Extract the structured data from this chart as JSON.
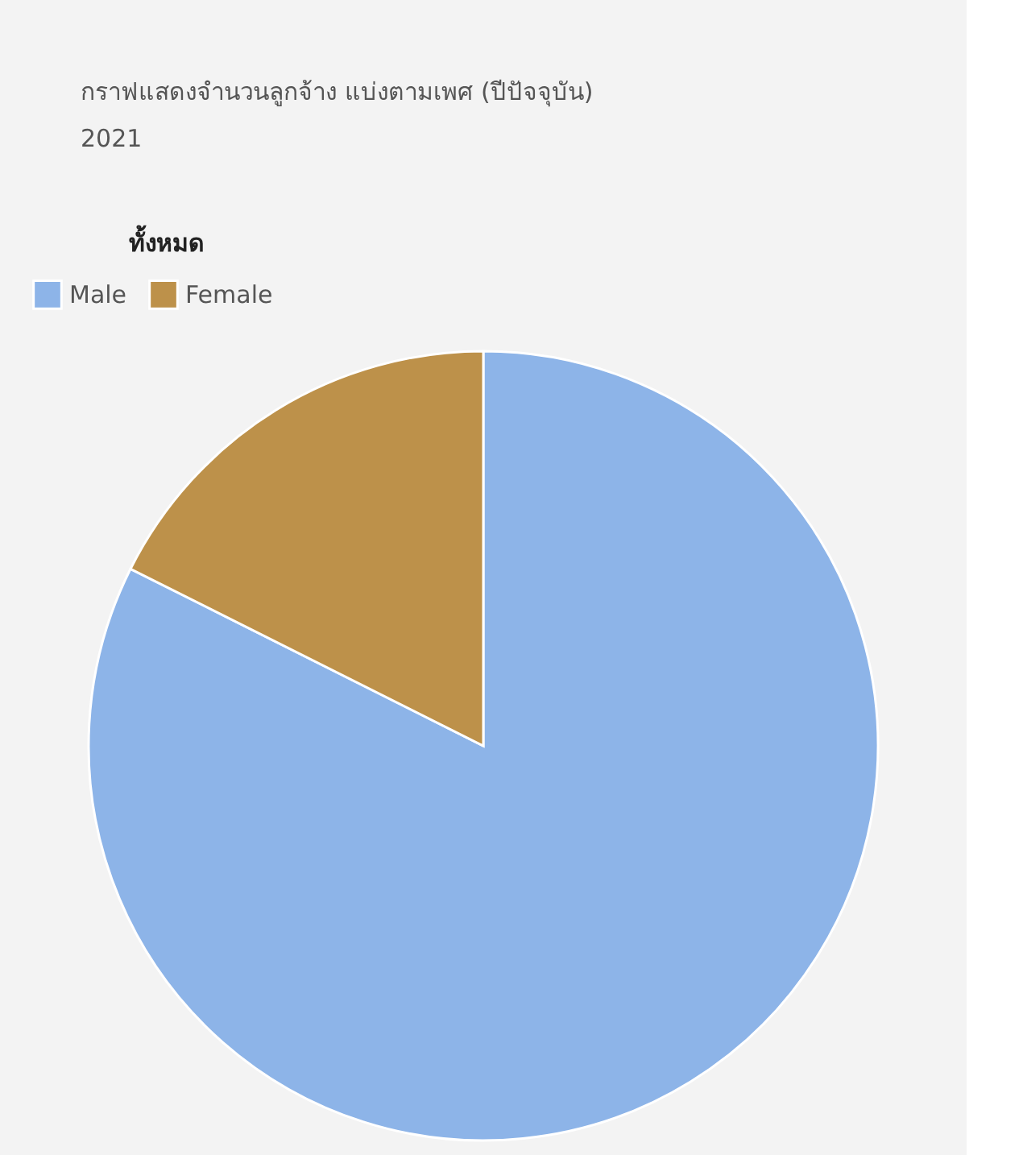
{
  "chart_data": {
    "type": "pie",
    "title": "กราฟแสดงจำนวนลูกจ้าง แบ่งตามเพศ (ปีปัจจุบัน)",
    "subtitle": "2021",
    "annotations": [
      "ทั้งหมด"
    ],
    "categories": [
      "Male",
      "Female"
    ],
    "values": [
      82.4,
      17.6
    ],
    "colors": [
      "#8db4e8",
      "#bd914a"
    ],
    "legend": "top"
  }
}
